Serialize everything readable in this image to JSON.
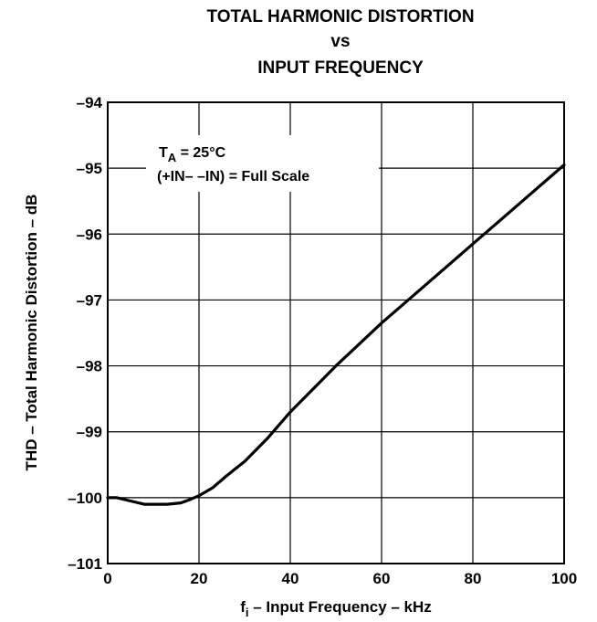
{
  "chart_data": {
    "type": "line",
    "title_lines": [
      "TOTAL HARMONIC DISTORTION",
      "vs",
      "INPUT FREQUENCY"
    ],
    "xlabel": {
      "main": "f",
      "sub": "i",
      "rest": " – Input Frequency – kHz"
    },
    "ylabel": "THD – Total Harmonic Distortion – dB",
    "xlim": [
      0,
      100
    ],
    "ylim": [
      -101,
      -94
    ],
    "x_ticks": [
      0,
      20,
      40,
      60,
      80,
      100
    ],
    "y_ticks": [
      -94,
      -95,
      -96,
      -97,
      -98,
      -99,
      -100,
      -101
    ],
    "x_tick_labels": [
      "0",
      "20",
      "40",
      "60",
      "80",
      "100"
    ],
    "y_tick_labels": [
      "–94",
      "–95",
      "–96",
      "–97",
      "–98",
      "–99",
      "–100",
      "–101"
    ],
    "grid": true,
    "annotation": {
      "line1_main": "T",
      "line1_sub": "A",
      "line1_rest": " = 25°C",
      "line2": "(+IN– –IN) = Full Scale"
    },
    "series": [
      {
        "x": [
          0,
          2,
          5,
          8,
          10,
          13,
          16,
          18,
          20,
          23,
          26,
          30,
          35,
          40,
          50,
          60,
          70,
          80,
          90,
          100
        ],
        "y": [
          -100.0,
          -100.0,
          -100.05,
          -100.1,
          -100.1,
          -100.1,
          -100.08,
          -100.03,
          -99.97,
          -99.85,
          -99.67,
          -99.45,
          -99.1,
          -98.7,
          -98.0,
          -97.35,
          -96.75,
          -96.15,
          -95.55,
          -94.95
        ]
      }
    ],
    "colors": {
      "line": "#000000",
      "grid": "#000000",
      "background": "#ffffff"
    }
  }
}
